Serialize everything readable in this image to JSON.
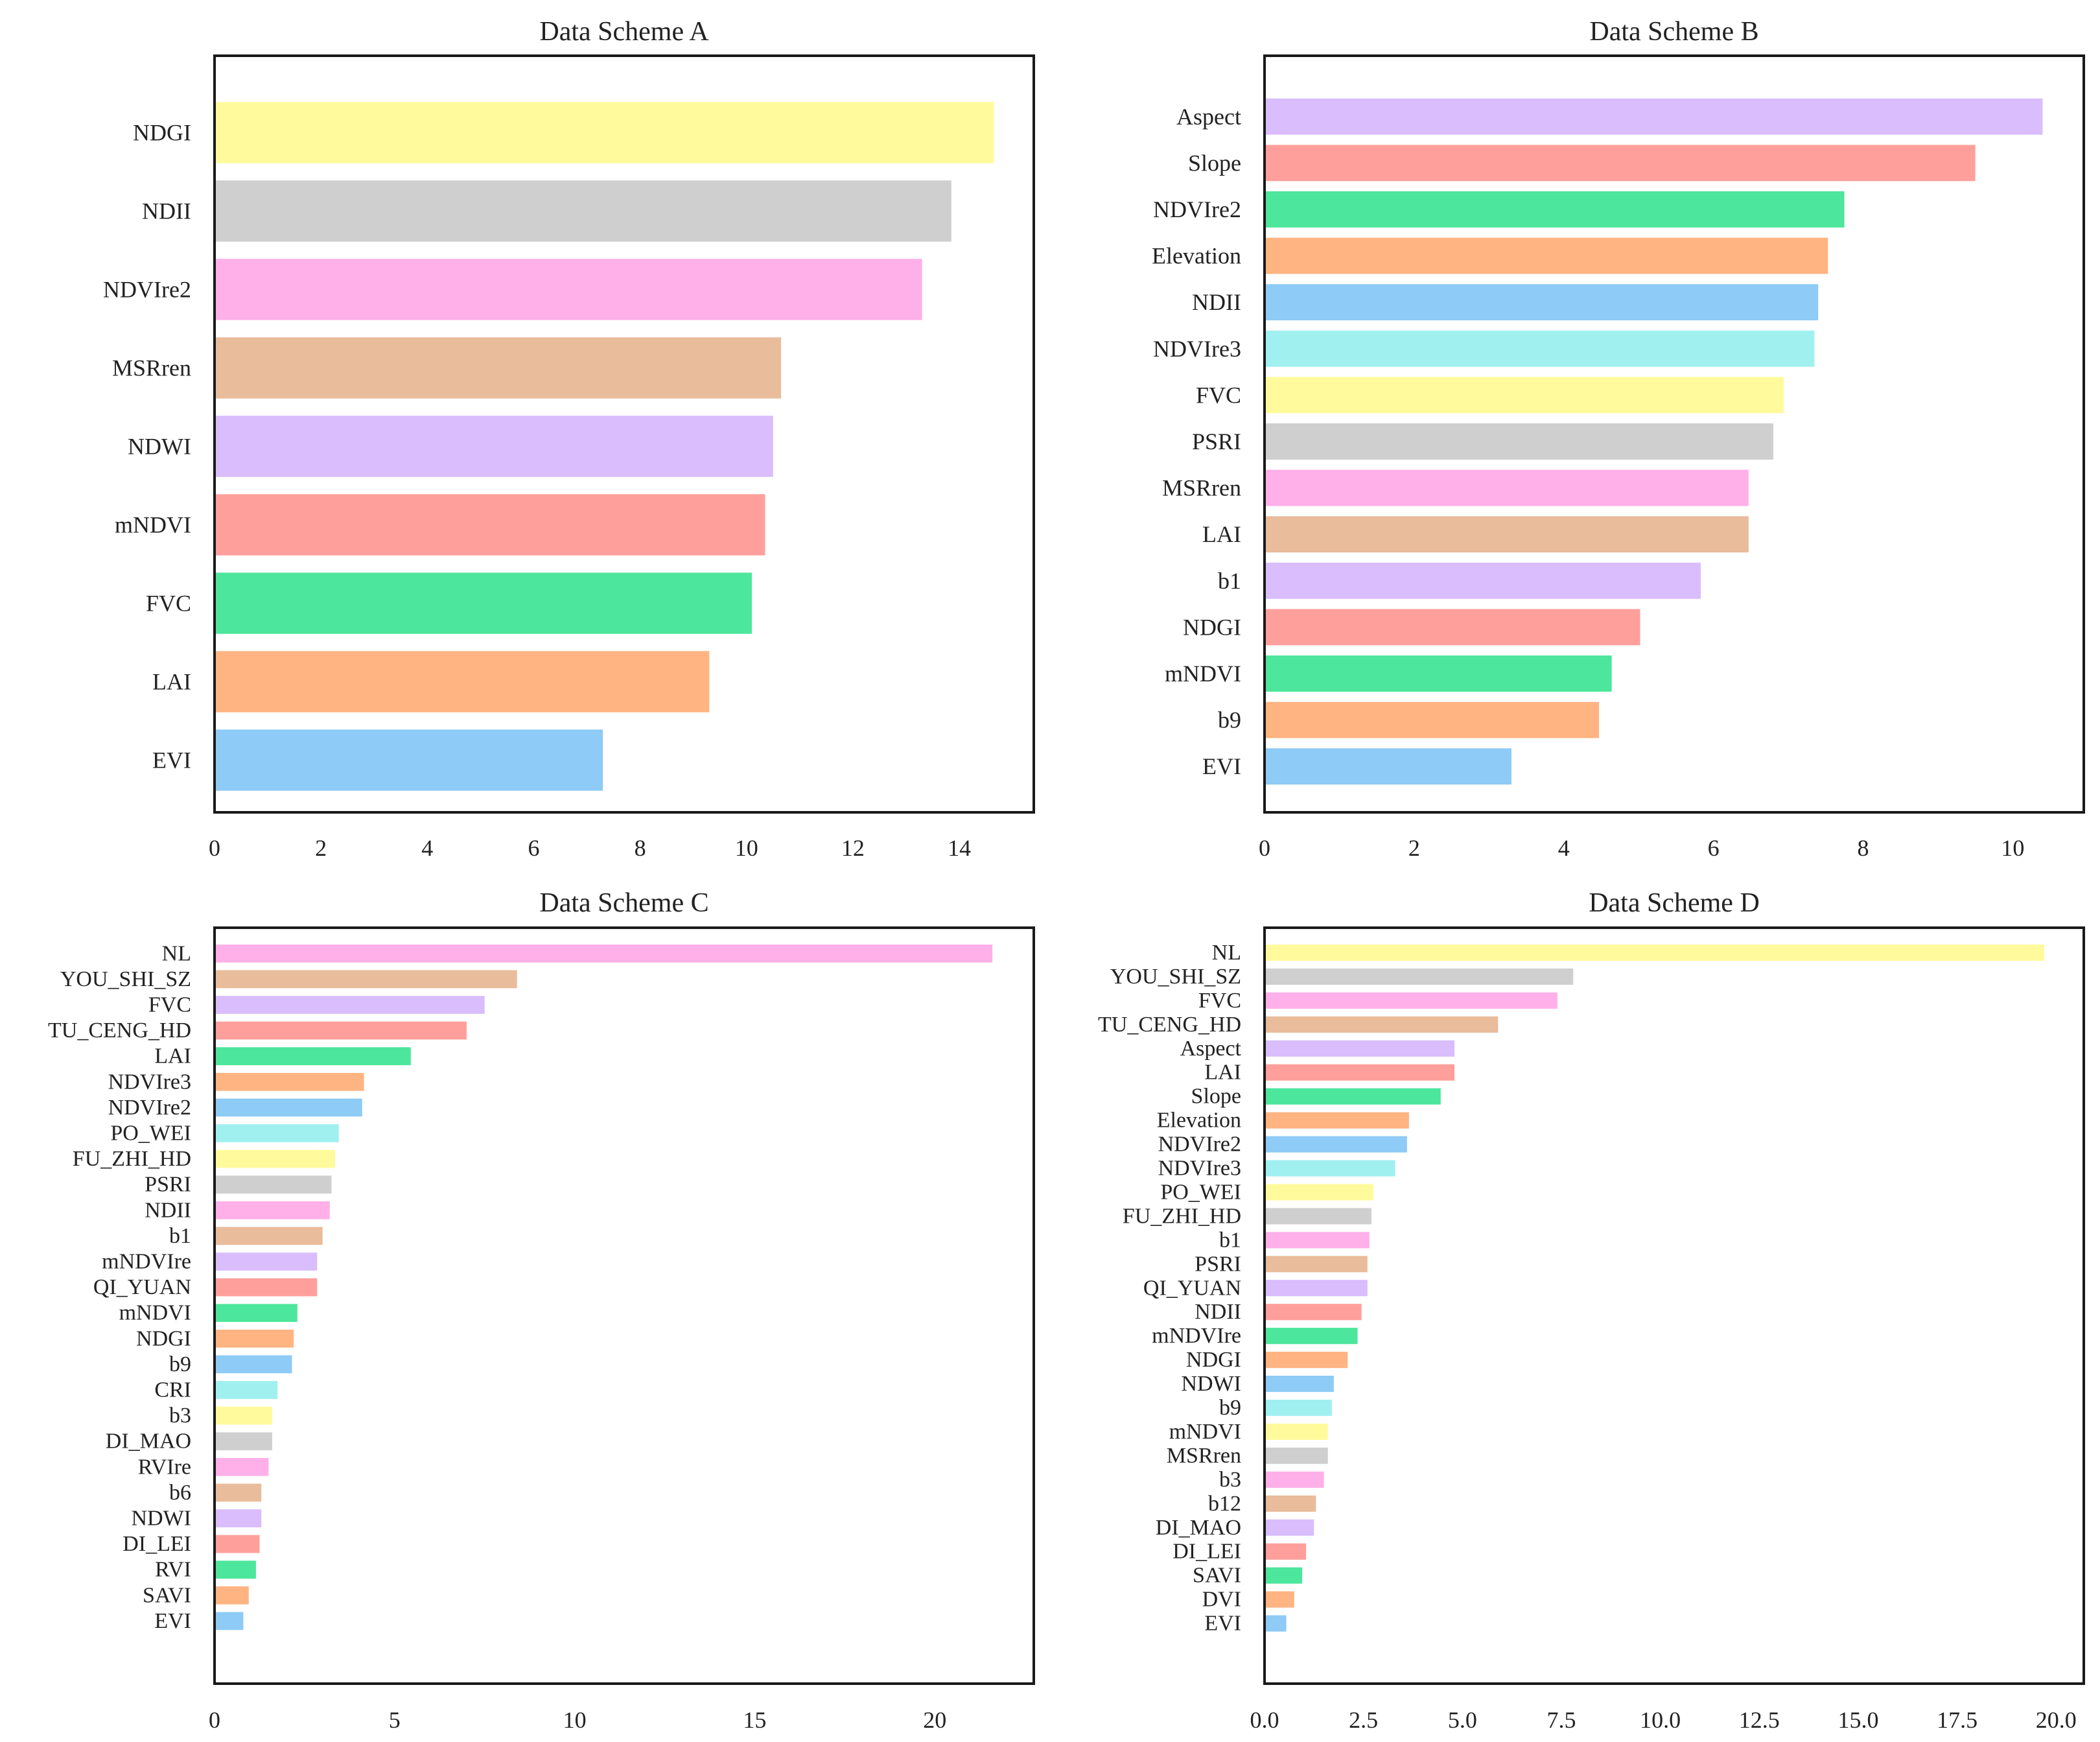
{
  "palette": [
    "#8ecbf6",
    "#ffb482",
    "#4ce69c",
    "#ff9f9b",
    "#d9bdfc",
    "#e9bc9b",
    "#ffb0e8",
    "#cfcfcf",
    "#fffb9c",
    "#a1f0f0"
  ],
  "chart_data": [
    {
      "type": "bar",
      "orientation": "horizontal",
      "title": "Data Scheme A",
      "xlabel": "",
      "ylabel": "",
      "xlim": [
        0,
        15.4
      ],
      "xticks": [
        0,
        2,
        4,
        6,
        8,
        10,
        12,
        14
      ],
      "tick_labels": [
        "0",
        "2",
        "4",
        "6",
        "8",
        "10",
        "12",
        "14"
      ],
      "grid": false,
      "categories": [
        "EVI",
        "LAI",
        "FVC",
        "mNDVI",
        "NDWI",
        "MSRren",
        "NDVIre2",
        "NDII",
        "NDGI"
      ],
      "values": [
        7.3,
        9.3,
        10.1,
        10.35,
        10.5,
        10.65,
        13.3,
        13.85,
        14.65
      ]
    },
    {
      "type": "bar",
      "orientation": "horizontal",
      "title": "Data Scheme B",
      "xlabel": "",
      "ylabel": "",
      "xlim": [
        0,
        10.95
      ],
      "xticks": [
        0,
        2,
        4,
        6,
        8,
        10
      ],
      "tick_labels": [
        "0",
        "2",
        "4",
        "6",
        "8",
        "10"
      ],
      "grid": false,
      "categories": [
        "EVI",
        "b9",
        "mNDVI",
        "NDGI",
        "b1",
        "LAI",
        "MSRren",
        "PSRI",
        "FVC",
        "NDVIre3",
        "NDII",
        "Elevation",
        "NDVIre2",
        "Slope",
        "Aspect"
      ],
      "values": [
        3.3,
        4.47,
        4.64,
        5.02,
        5.83,
        6.47,
        6.47,
        6.8,
        6.94,
        7.35,
        7.4,
        7.53,
        7.75,
        9.5,
        10.4
      ]
    },
    {
      "type": "bar",
      "orientation": "horizontal",
      "title": "Data Scheme C",
      "xlabel": "",
      "ylabel": "",
      "xlim": [
        0,
        22.75
      ],
      "xticks": [
        0,
        5,
        10,
        15,
        20
      ],
      "tick_labels": [
        "0",
        "5",
        "10",
        "15",
        "20"
      ],
      "grid": false,
      "categories": [
        "EVI",
        "SAVI",
        "RVI",
        "DI_LEI",
        "NDWI",
        "b6",
        "RVIre",
        "DI_MAO",
        "b3",
        "CRI",
        "b9",
        "NDGI",
        "mNDVI",
        "QI_YUAN",
        "mNDVIre",
        "b1",
        "NDII",
        "PSRI",
        "FU_ZHI_HD",
        "PO_WEI",
        "NDVIre2",
        "NDVIre3",
        "LAI",
        "TU_CENG_HD",
        "FVC",
        "YOU_SHI_SZ",
        "NL"
      ],
      "values": [
        0.8,
        0.95,
        1.15,
        1.25,
        1.3,
        1.3,
        1.5,
        1.6,
        1.6,
        1.75,
        2.15,
        2.2,
        2.3,
        2.85,
        2.85,
        3.0,
        3.2,
        3.25,
        3.35,
        3.45,
        4.1,
        4.15,
        5.45,
        7.0,
        7.5,
        8.4,
        21.6
      ]
    },
    {
      "type": "bar",
      "orientation": "horizontal",
      "title": "Data Scheme D",
      "xlabel": "",
      "ylabel": "",
      "xlim": [
        0,
        20.7
      ],
      "xticks": [
        0,
        2.5,
        5,
        7.5,
        10,
        12.5,
        15,
        17.5,
        20
      ],
      "tick_labels": [
        "0.0",
        "2.5",
        "5.0",
        "7.5",
        "10.0",
        "12.5",
        "15.0",
        "17.5",
        "20.0"
      ],
      "grid": false,
      "categories": [
        "EVI",
        "DVI",
        "SAVI",
        "DI_LEI",
        "DI_MAO",
        "b12",
        "b3",
        "MSRren",
        "mNDVI",
        "b9",
        "NDWI",
        "NDGI",
        "mNDVIre",
        "NDII",
        "QI_YUAN",
        "PSRI",
        "b1",
        "FU_ZHI_HD",
        "PO_WEI",
        "NDVIre3",
        "NDVIre2",
        "Elevation",
        "Slope",
        "LAI",
        "Aspect",
        "TU_CENG_HD",
        "FVC",
        "YOU_SHI_SZ",
        "NL"
      ],
      "values": [
        0.55,
        0.75,
        0.95,
        1.05,
        1.25,
        1.3,
        1.5,
        1.6,
        1.6,
        1.7,
        1.75,
        2.1,
        2.35,
        2.45,
        2.6,
        2.6,
        2.65,
        2.7,
        2.75,
        3.3,
        3.6,
        3.65,
        4.45,
        4.8,
        4.8,
        5.9,
        7.4,
        7.8,
        19.7
      ]
    }
  ]
}
